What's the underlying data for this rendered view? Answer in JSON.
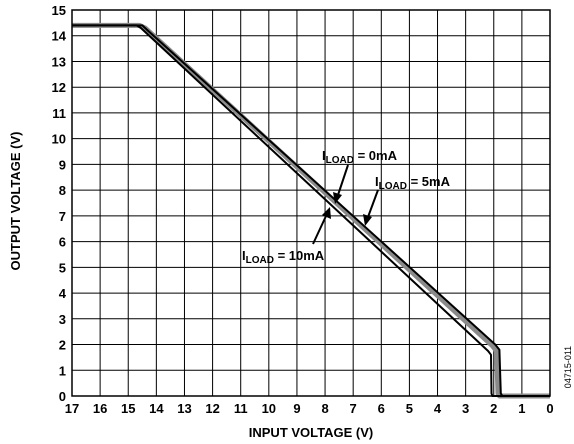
{
  "chart_data": {
    "type": "line",
    "xlabel": "INPUT VOLTAGE (V)",
    "ylabel": "OUTPUT VOLTAGE (V)",
    "xlim": [
      17,
      0
    ],
    "ylim": [
      0,
      15
    ],
    "x_reversed": true,
    "grid": true,
    "legend": "none",
    "xticks": [
      "17",
      "16",
      "15",
      "14",
      "13",
      "12",
      "11",
      "10",
      "9",
      "8",
      "7",
      "6",
      "5",
      "4",
      "3",
      "2",
      "1",
      "0"
    ],
    "yticks": [
      "0",
      "1",
      "2",
      "3",
      "4",
      "5",
      "6",
      "7",
      "8",
      "9",
      "10",
      "11",
      "12",
      "13",
      "14",
      "15"
    ],
    "series": [
      {
        "name": "I_LOAD = 0mA",
        "color": "#8a8a8a",
        "x": [
          17,
          14.6,
          14.4,
          2.05,
          1.9,
          1.85,
          1.8,
          0
        ],
        "y": [
          14.4,
          14.4,
          14.3,
          1.95,
          1.75,
          0.1,
          0,
          0
        ]
      },
      {
        "name": "I_LOAD = 5mA",
        "color": "#000000",
        "x": [
          17,
          14.5,
          14.3,
          1.95,
          1.8,
          1.75,
          1.7,
          0
        ],
        "y": [
          14.4,
          14.4,
          14.2,
          2.0,
          1.8,
          0.1,
          0,
          0
        ]
      },
      {
        "name": "I_LOAD = 10mA",
        "color": "#000000",
        "x": [
          17,
          14.7,
          14.55,
          2.2,
          2.1,
          2.08,
          2.05,
          0
        ],
        "y": [
          14.4,
          14.4,
          14.3,
          1.75,
          1.6,
          0.1,
          0,
          0
        ]
      }
    ],
    "annotations": [
      {
        "main": "I",
        "sub": "LOAD",
        "rest": " = 0mA"
      },
      {
        "main": "I",
        "sub": "LOAD",
        "rest": " = 5mA"
      },
      {
        "main": "I",
        "sub": "LOAD",
        "rest": " = 10mA"
      }
    ],
    "figure_id": "04715-011"
  }
}
